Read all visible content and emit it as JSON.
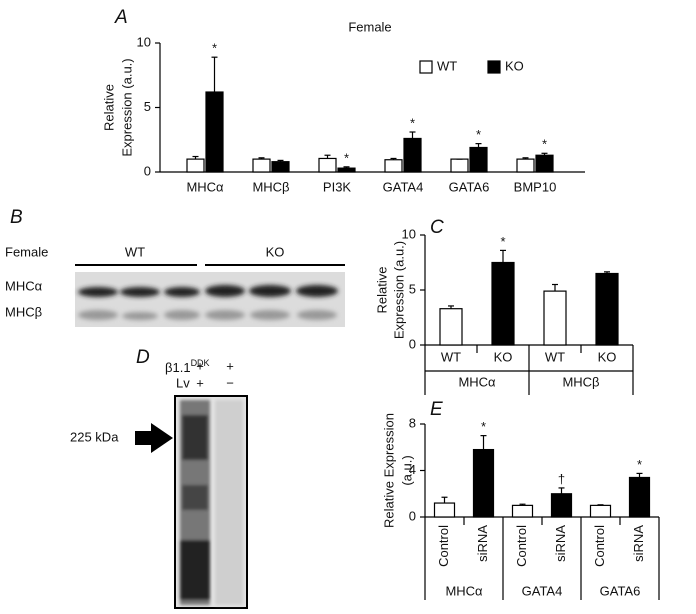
{
  "chart_data": [
    {
      "type": "bar",
      "panel": "A",
      "title": "Female",
      "categories": [
        "MHCα",
        "MHCβ",
        "PI3K",
        "GATA4",
        "GATA6",
        "BMP10"
      ],
      "series": [
        {
          "name": "WT",
          "color": "#ffffff",
          "values": [
            1.0,
            1.0,
            1.05,
            0.95,
            1.0,
            1.0
          ],
          "errors": [
            0.2,
            0.1,
            0.25,
            0.1,
            0,
            0.1
          ]
        },
        {
          "name": "KO",
          "color": "#000000",
          "values": [
            6.2,
            0.8,
            0.3,
            2.6,
            1.9,
            1.3
          ],
          "errors": [
            2.7,
            0.1,
            0.1,
            0.5,
            0.3,
            0.15
          ],
          "marks": [
            "*",
            null,
            "*",
            "*",
            "*",
            "*"
          ]
        }
      ],
      "ylim": [
        0,
        10
      ],
      "yticks": [
        0,
        5,
        10
      ],
      "ylabel": [
        "Relative",
        "Expression (a.u.)"
      ],
      "legend": "upper right"
    },
    {
      "type": "bar",
      "panel": "C",
      "categories": [
        "WT",
        "KO",
        "WT",
        "KO"
      ],
      "groups": [
        "MHCα",
        "MHCβ"
      ],
      "values": [
        3.3,
        7.5,
        4.9,
        6.5
      ],
      "errors": [
        0.25,
        1.1,
        0.6,
        0.15
      ],
      "colors": [
        "#ffffff",
        "#000000",
        "#ffffff",
        "#000000"
      ],
      "marks": [
        null,
        "*",
        null,
        null
      ],
      "ylim": [
        0,
        10
      ],
      "yticks": [
        0,
        5,
        10
      ],
      "ylabel": [
        "Relative",
        "Expression (a.u.)"
      ]
    },
    {
      "type": "bar",
      "panel": "E",
      "categories": [
        "Control",
        "siRNA",
        "Control",
        "siRNA",
        "Control",
        "siRNA"
      ],
      "groups": [
        "MHCα",
        "GATA4",
        "GATA6"
      ],
      "values": [
        1.2,
        5.8,
        1.0,
        2.0,
        1.0,
        3.4
      ],
      "errors": [
        0.5,
        1.2,
        0.1,
        0.5,
        0.05,
        0.35
      ],
      "colors": [
        "#ffffff",
        "#000000",
        "#ffffff",
        "#000000",
        "#ffffff",
        "#000000"
      ],
      "marks": [
        null,
        "*",
        null,
        "†",
        null,
        "*"
      ],
      "ylim": [
        0,
        8
      ],
      "yticks": [
        0,
        4,
        8
      ],
      "ylabel": [
        "Relative Expression",
        "(a.u.)"
      ]
    }
  ],
  "blot_b": {
    "panel": "B",
    "title": "Female",
    "groups": [
      "WT",
      "KO"
    ],
    "rows": [
      "MHCα",
      "MHCβ"
    ]
  },
  "blot_d": {
    "panel": "D",
    "rows": [
      {
        "name": "β1.1",
        "sup": "DDK",
        "signs": [
          "+",
          "+"
        ]
      },
      {
        "name": "Lv",
        "signs": [
          "+",
          "−"
        ]
      }
    ],
    "marker": "225 kDa"
  }
}
